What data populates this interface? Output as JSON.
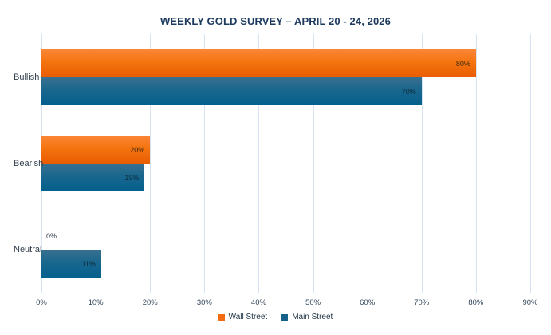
{
  "chart_data": {
    "type": "bar",
    "orientation": "horizontal",
    "title": "WEEKLY GOLD SURVEY – APRIL 20 - 24, 2026",
    "categories": [
      "Bullish",
      "Bearish",
      "Neutral"
    ],
    "series": [
      {
        "name": "Wall Street",
        "values": [
          80,
          20,
          0
        ],
        "color": "#f26c13",
        "gradient": [
          "#fc8637",
          "#e95c02"
        ],
        "label_color": "#3b2a15"
      },
      {
        "name": "Main Street",
        "values": [
          70,
          19,
          11
        ],
        "color": "#15618a",
        "gradient": [
          "#39708f",
          "#02608c"
        ],
        "label_color": "#0e2a3d"
      }
    ],
    "value_suffix": "%",
    "x_ticks": [
      "0%",
      "10%",
      "20%",
      "30%",
      "40%",
      "50%",
      "60%",
      "70%",
      "80%",
      "90%"
    ],
    "xlim": [
      0,
      90
    ],
    "xlabel": "",
    "ylabel": "",
    "grid": "vertical",
    "gridline_color": "#d5e3f5",
    "legend_position": "bottom-center",
    "title_color": "#1d3a5f",
    "border_color": "#d9e6f3"
  }
}
